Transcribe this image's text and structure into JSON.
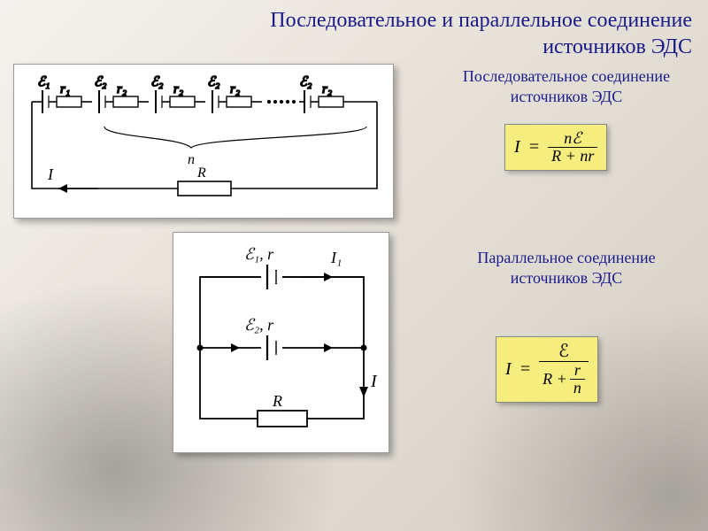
{
  "title_line1": "Последовательное и параллельное соединение",
  "title_line2": "источников ЭДС",
  "section1": {
    "label_line1": "Последовательное соединение",
    "label_line2": "источников ЭДС",
    "formula": {
      "lhs": "I",
      "numerator": "nℰ",
      "denominator": "R + nr"
    }
  },
  "section2": {
    "label_line1": "Параллельное соединение",
    "label_line2": "источников ЭДС",
    "formula": {
      "lhs": "I",
      "numerator": "ℰ",
      "denom_left": "R +",
      "denom_frac_num": "r",
      "denom_frac_den": "n"
    }
  },
  "series_diagram": {
    "emf_labels": [
      "ℰ₁",
      "ℰ₂",
      "ℰ₂",
      "ℰ₂",
      "ℰ₂"
    ],
    "r_labels": [
      "r₁",
      "r₂",
      "r₂",
      "r₂"
    ],
    "n_label": "n",
    "I_label": "I",
    "R_label": "R",
    "colors": {
      "wire": "#000000",
      "bg": "#ffffff",
      "text": "#000000"
    }
  },
  "parallel_diagram": {
    "emf1": "ℰ₁, r",
    "emf2": "ℰ₂, r",
    "I1": "I₁",
    "I": "I",
    "R": "R",
    "colors": {
      "wire": "#000000",
      "bg": "#ffffff",
      "text": "#000000"
    }
  },
  "style": {
    "title_color": "#1a1a8a",
    "caption_color": "#1a1a8a",
    "formula_bg": "#f6ed7f",
    "formula_border": "#888888",
    "page_bg_from": "#f5f2ee",
    "page_bg_to": "#d4cfc5",
    "title_fontsize": 24,
    "caption_fontsize": 18,
    "formula_fontsize": 20,
    "diagram_label_fontsize": 16
  }
}
